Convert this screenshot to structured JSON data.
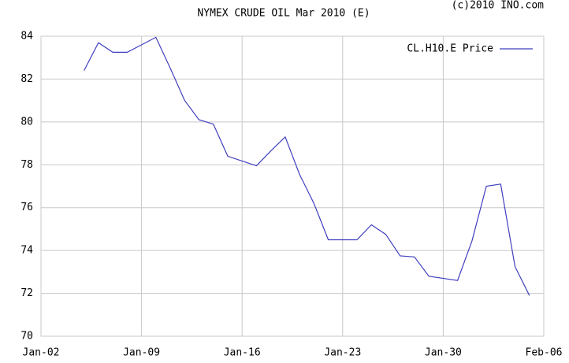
{
  "chart_data": {
    "type": "line",
    "title": "NYMEX CRUDE OIL Mar 2010 (E)",
    "copyright": "(c)2010 INO.com",
    "x": [
      "Jan-05",
      "Jan-06",
      "Jan-07",
      "Jan-08",
      "Jan-10",
      "Jan-11",
      "Jan-12",
      "Jan-13",
      "Jan-14",
      "Jan-15",
      "Jan-17",
      "Jan-18",
      "Jan-19",
      "Jan-20",
      "Jan-21",
      "Jan-22",
      "Jan-24",
      "Jan-25",
      "Jan-26",
      "Jan-27",
      "Jan-28",
      "Jan-29",
      "Jan-31",
      "Feb-01",
      "Feb-02",
      "Feb-03",
      "Feb-04",
      "Feb-05"
    ],
    "series": [
      {
        "name": "CL.H10.E Price",
        "color": "#3f3fbf",
        "values": [
          82.4,
          83.7,
          83.25,
          83.25,
          83.95,
          82.5,
          81.0,
          80.1,
          79.9,
          78.4,
          77.95,
          78.65,
          79.3,
          77.55,
          76.2,
          74.5,
          74.5,
          75.2,
          74.75,
          73.75,
          73.7,
          72.8,
          72.6,
          74.45,
          77.0,
          77.1,
          73.25,
          71.9
        ]
      }
    ],
    "xlim": [
      "Jan-02",
      "Feb-06"
    ],
    "xticks": [
      "Jan-02",
      "Jan-09",
      "Jan-16",
      "Jan-23",
      "Jan-30",
      "Feb-06"
    ],
    "ylim": [
      70,
      84
    ],
    "yticks": [
      70,
      72,
      74,
      76,
      78,
      80,
      82,
      84
    ],
    "grid": true,
    "legend": "top-right"
  }
}
